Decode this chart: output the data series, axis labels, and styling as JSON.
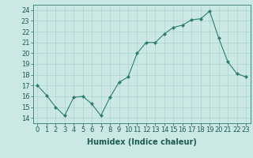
{
  "x": [
    0,
    1,
    2,
    3,
    4,
    5,
    6,
    7,
    8,
    9,
    10,
    11,
    12,
    13,
    14,
    15,
    16,
    17,
    18,
    19,
    20,
    21,
    22,
    23
  ],
  "y": [
    17,
    16.1,
    15,
    14.2,
    15.9,
    16,
    15.3,
    14.2,
    15.9,
    17.3,
    17.8,
    20,
    21,
    21,
    21.8,
    22.4,
    22.6,
    23.1,
    23.2,
    23.9,
    21.4,
    19.2,
    18.1,
    17.8
  ],
  "xlabel": "Humidex (Indice chaleur)",
  "xlim": [
    -0.5,
    23.5
  ],
  "ylim": [
    13.5,
    24.5
  ],
  "yticks": [
    14,
    15,
    16,
    17,
    18,
    19,
    20,
    21,
    22,
    23,
    24
  ],
  "xticks": [
    0,
    1,
    2,
    3,
    4,
    5,
    6,
    7,
    8,
    9,
    10,
    11,
    12,
    13,
    14,
    15,
    16,
    17,
    18,
    19,
    20,
    21,
    22,
    23
  ],
  "line_color": "#2e7d6e",
  "marker_color": "#2e7d6e",
  "bg_color": "#cce8e4",
  "grid_color": "#aad4cf",
  "label_fontsize": 7.0,
  "tick_fontsize": 6.0
}
